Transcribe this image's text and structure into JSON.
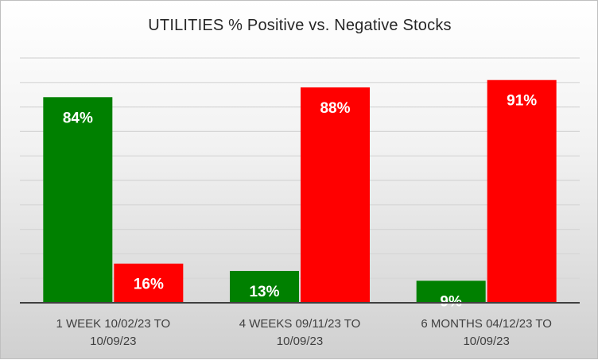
{
  "chart_data": {
    "type": "bar",
    "title": "UTILITIES % Positive vs. Negative Stocks",
    "categories": [
      "1 WEEK 10/02/23 TO 10/09/23",
      "4 WEEKS 09/11/23 TO 10/09/23",
      "6 MONTHS 04/12/23 TO 10/09/23"
    ],
    "category_lines": [
      [
        "1 WEEK 10/02/23 TO",
        "10/09/23"
      ],
      [
        "4 WEEKS 09/11/23 TO",
        "10/09/23"
      ],
      [
        "6 MONTHS 04/12/23 TO",
        "10/09/23"
      ]
    ],
    "series": [
      {
        "values": [
          84,
          13,
          9
        ],
        "labels": [
          "84%",
          "13%",
          "9%"
        ],
        "color": "#008000"
      },
      {
        "values": [
          16,
          88,
          91
        ],
        "labels": [
          "16%",
          "88%",
          "91%"
        ],
        "color": "#ff0000"
      }
    ],
    "ylim": [
      0,
      100
    ],
    "grid": true,
    "legend": "none"
  }
}
